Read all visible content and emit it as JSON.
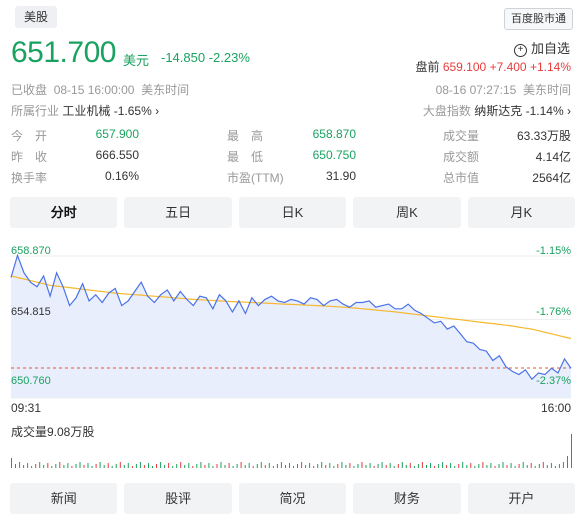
{
  "header": {
    "market_tag": "美股",
    "source_tag": "百度股市通",
    "add_watch": "加自选"
  },
  "quote": {
    "price": "651.700",
    "unit": "美元",
    "change": "-14.850",
    "change_pct": "-2.23%"
  },
  "premarket": {
    "label": "盘前",
    "price": "659.100",
    "change": "+7.400",
    "change_pct": "+1.14%"
  },
  "status": {
    "closed_text": "已收盘",
    "closed_time": "08-15 16:00:00",
    "closed_tz": "美东时间",
    "pre_time": "08-16 07:27:15",
    "pre_tz": "美东时间"
  },
  "industry": {
    "label": "所属行业",
    "name": "工业机械",
    "pct": "-1.65%",
    "arrow": "›"
  },
  "index": {
    "label": "大盘指数",
    "name": "纳斯达克",
    "pct": "-1.14%",
    "arrow": "›"
  },
  "stats": [
    [
      {
        "label": "今　开",
        "value": "657.900",
        "color": "#1aa260"
      },
      {
        "label": "最　高",
        "value": "658.870",
        "color": "#1aa260"
      },
      {
        "label": "成交量",
        "value": "63.33万股",
        "color": "#333333"
      }
    ],
    [
      {
        "label": "昨　收",
        "value": "666.550",
        "color": "#333333"
      },
      {
        "label": "最　低",
        "value": "650.750",
        "color": "#1aa260"
      },
      {
        "label": "成交额",
        "value": "4.14亿",
        "color": "#333333"
      }
    ],
    [
      {
        "label": "换手率",
        "value": "0.16%",
        "color": "#333333"
      },
      {
        "label": "市盈(TTM)",
        "value": "31.90",
        "color": "#333333"
      },
      {
        "label": "总市值",
        "value": "2564亿",
        "color": "#333333"
      }
    ]
  ],
  "tabs": [
    "分时",
    "五日",
    "日K",
    "周K",
    "月K"
  ],
  "active_tab": 0,
  "chart": {
    "y_top": "658.870",
    "y_mid": "654.815",
    "y_bot": "650.760",
    "pct_top": "-1.15%",
    "pct_mid": "-1.76%",
    "pct_bot": "-2.37%",
    "x_start": "09:31",
    "x_end": "16:00",
    "volume_label": "成交量9.08万股",
    "colors": {
      "price_line": "#4a72e8",
      "avg_line": "#f5b82e",
      "fill": "#e9eefc",
      "prev_close": "#e8553d",
      "down": "#1aa260",
      "up": "#e63d3d"
    }
  },
  "chart_data": {
    "type": "line",
    "ylim": [
      650.76,
      658.87
    ],
    "series": [
      {
        "values": [
          657.5,
          658.9,
          657.8,
          657.2,
          656.9,
          657.6,
          656.3,
          657.8,
          656.9,
          655.7,
          656.2,
          657.1,
          656.0,
          656.4,
          655.9,
          656.5,
          656.8,
          655.7,
          656.0,
          656.6,
          657.2,
          656.3,
          655.9,
          656.4,
          656.7,
          656.0,
          656.6,
          656.1,
          655.7,
          656.3,
          656.2,
          655.5,
          656.4,
          656.0,
          655.3,
          656.0,
          655.2,
          656.2,
          655.7,
          656.1,
          656.3,
          656.0,
          655.9,
          656.1,
          656.0,
          655.8,
          656.2,
          656.1,
          655.7,
          656.0,
          656.1,
          655.8,
          655.6,
          655.9,
          655.9,
          656.0,
          655.6,
          655.7,
          655.8,
          655.5,
          655.5,
          655.8,
          655.4,
          655.2,
          654.9,
          654.6,
          654.7,
          654.2,
          654.4,
          653.9,
          653.4,
          653.3,
          652.9,
          652.8,
          652.2,
          652.5,
          651.8,
          651.5,
          651.3,
          651.6,
          651.0,
          651.4,
          651.3,
          651.7,
          651.4,
          652.3,
          651.7
        ]
      },
      {
        "values": [
          657.6,
          657.5,
          657.4,
          657.3,
          657.2,
          657.1,
          657.0,
          656.95,
          656.9,
          656.85,
          656.8,
          656.75,
          656.7,
          656.65,
          656.6,
          656.55,
          656.5,
          656.47,
          656.43,
          656.4,
          656.37,
          656.33,
          656.3,
          656.27,
          656.24,
          656.2,
          656.17,
          656.14,
          656.1,
          656.08,
          656.05,
          656.03,
          656.0,
          655.98,
          655.96,
          655.94,
          655.92,
          655.9,
          655.88,
          655.86,
          655.84,
          655.82,
          655.8,
          655.78,
          655.76,
          655.74,
          655.72,
          655.7,
          655.68,
          655.66,
          655.63,
          655.6,
          655.57,
          655.54,
          655.5,
          655.46,
          655.42,
          655.38,
          655.34,
          655.3,
          655.25,
          655.2,
          655.15,
          655.1,
          655.05,
          655.0,
          654.95,
          654.9,
          654.85,
          654.8,
          654.75,
          654.7,
          654.65,
          654.6,
          654.55,
          654.5,
          654.45,
          654.4,
          654.33,
          654.26,
          654.2,
          654.1,
          654.0,
          653.9,
          653.8,
          653.7,
          653.6
        ]
      }
    ]
  }
}
